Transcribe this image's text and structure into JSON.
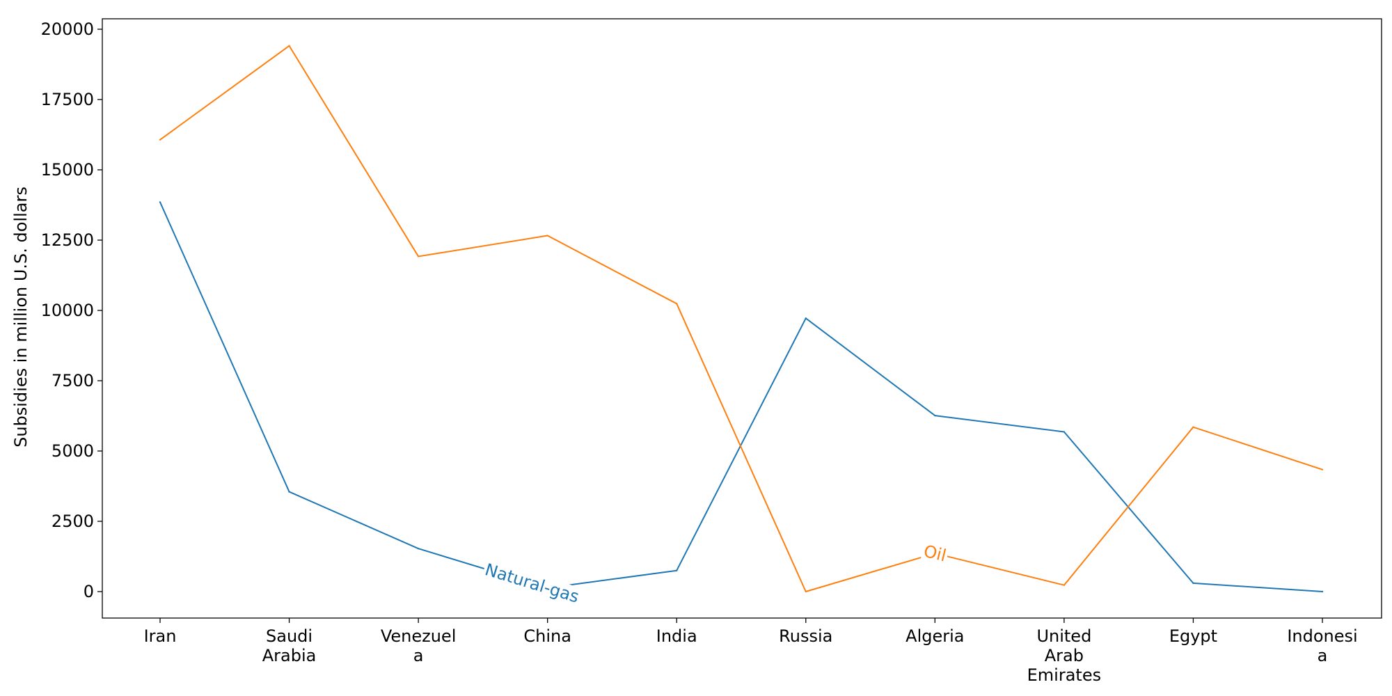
{
  "chart_data": {
    "type": "line",
    "title": "",
    "xlabel": "",
    "ylabel": "Subsidies in million U.S. dollars",
    "categories": [
      [
        "Iran"
      ],
      [
        "Saudi",
        "Arabia"
      ],
      [
        "Venezuel",
        "a"
      ],
      [
        "China"
      ],
      [
        "India"
      ],
      [
        "Russia"
      ],
      [
        "Algeria"
      ],
      [
        "United",
        "Arab",
        "Emirates"
      ],
      [
        "Egypt"
      ],
      [
        "Indonesi",
        "a"
      ]
    ],
    "ylim": [
      -1000,
      20400
    ],
    "yticks": [
      0,
      2500,
      5000,
      7500,
      10000,
      12500,
      15000,
      17500,
      20000
    ],
    "ytick_labels": [
      "0",
      "2500",
      "5000",
      "7500",
      "10000",
      "12500",
      "15000",
      "17500",
      "20000"
    ],
    "grid": false,
    "legend": "none (inline series labels)",
    "series": [
      {
        "name": "Natural-gas",
        "color": "#1f77b4",
        "values": [
          13850,
          3550,
          1530,
          130,
          750,
          9720,
          6260,
          5680,
          300,
          0
        ],
        "label_at": 3
      },
      {
        "name": "Oil",
        "color": "#ff7f0e",
        "values": [
          16070,
          19410,
          11920,
          12660,
          10240,
          0,
          1360,
          230,
          5850,
          4340
        ],
        "label_at": 6
      }
    ]
  }
}
